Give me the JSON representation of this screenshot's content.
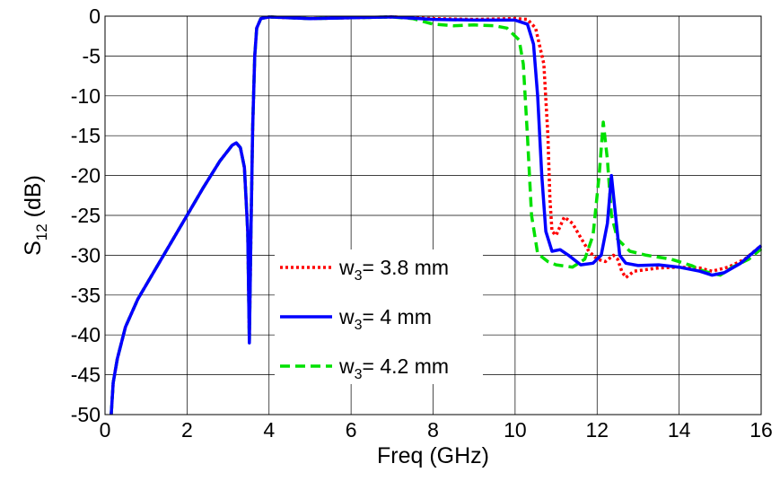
{
  "chart_data": {
    "type": "line",
    "xlabel": "Freq (GHz)",
    "ylabel": {
      "main": "S",
      "sub": "12",
      "rest": " (dB)"
    },
    "xlim": [
      0,
      16
    ],
    "ylim": [
      -50,
      0
    ],
    "xticks": [
      0,
      2,
      4,
      6,
      8,
      10,
      12,
      14,
      16
    ],
    "yticks": [
      0,
      -5,
      -10,
      -15,
      -20,
      -25,
      -30,
      -35,
      -40,
      -45,
      -50
    ],
    "grid": true,
    "legend_position": "lower-center",
    "series": [
      {
        "name": {
          "main": "w",
          "sub": "3",
          "rest": "= 3.8 mm"
        },
        "color": "#ff0000",
        "dash": "dotted",
        "points": [
          [
            0.15,
            -50
          ],
          [
            0.2,
            -46
          ],
          [
            0.3,
            -43
          ],
          [
            0.5,
            -39
          ],
          [
            0.8,
            -35.5
          ],
          [
            1.2,
            -32
          ],
          [
            1.6,
            -28.5
          ],
          [
            2.0,
            -25
          ],
          [
            2.4,
            -21.5
          ],
          [
            2.8,
            -18.2
          ],
          [
            3.1,
            -16.2
          ],
          [
            3.2,
            -15.9
          ],
          [
            3.3,
            -16.5
          ],
          [
            3.4,
            -19
          ],
          [
            3.48,
            -27
          ],
          [
            3.52,
            -40.5
          ],
          [
            3.56,
            -27
          ],
          [
            3.6,
            -14
          ],
          [
            3.65,
            -5
          ],
          [
            3.7,
            -1.5
          ],
          [
            3.8,
            -0.3
          ],
          [
            4.0,
            -0.1
          ],
          [
            5,
            -0.3
          ],
          [
            6,
            -0.2
          ],
          [
            7,
            -0.1
          ],
          [
            8,
            -0.3
          ],
          [
            9,
            -0.4
          ],
          [
            10,
            -0.3
          ],
          [
            10.3,
            -0.4
          ],
          [
            10.5,
            -1.5
          ],
          [
            10.7,
            -6
          ],
          [
            10.8,
            -15
          ],
          [
            10.85,
            -23
          ],
          [
            10.9,
            -27
          ],
          [
            11.0,
            -27.5
          ],
          [
            11.2,
            -25.2
          ],
          [
            11.4,
            -26
          ],
          [
            11.6,
            -27.8
          ],
          [
            11.8,
            -29.5
          ],
          [
            12.0,
            -30.5
          ],
          [
            12.2,
            -30.8
          ],
          [
            12.4,
            -30
          ],
          [
            12.5,
            -30.5
          ],
          [
            12.6,
            -32
          ],
          [
            12.7,
            -32.8
          ],
          [
            12.9,
            -32
          ],
          [
            13.5,
            -31.6
          ],
          [
            14,
            -31.5
          ],
          [
            14.5,
            -31.6
          ],
          [
            14.8,
            -32
          ],
          [
            15.2,
            -31.5
          ],
          [
            15.6,
            -30.5
          ],
          [
            16,
            -28.8
          ]
        ]
      },
      {
        "name": {
          "main": "w",
          "sub": "3",
          "rest": "= 4 mm"
        },
        "color": "#0000ff",
        "dash": "solid",
        "points": [
          [
            0.15,
            -50
          ],
          [
            0.2,
            -46
          ],
          [
            0.3,
            -43
          ],
          [
            0.5,
            -39
          ],
          [
            0.8,
            -35.5
          ],
          [
            1.2,
            -32
          ],
          [
            1.6,
            -28.5
          ],
          [
            2.0,
            -25
          ],
          [
            2.4,
            -21.5
          ],
          [
            2.8,
            -18.2
          ],
          [
            3.1,
            -16.2
          ],
          [
            3.2,
            -15.9
          ],
          [
            3.3,
            -16.5
          ],
          [
            3.4,
            -19
          ],
          [
            3.48,
            -27
          ],
          [
            3.52,
            -41
          ],
          [
            3.56,
            -27
          ],
          [
            3.6,
            -14
          ],
          [
            3.65,
            -5
          ],
          [
            3.7,
            -1.5
          ],
          [
            3.8,
            -0.3
          ],
          [
            4.0,
            -0.1
          ],
          [
            5,
            -0.3
          ],
          [
            6,
            -0.2
          ],
          [
            7,
            -0.1
          ],
          [
            8,
            -0.4
          ],
          [
            9,
            -0.5
          ],
          [
            10,
            -0.5
          ],
          [
            10.3,
            -1.0
          ],
          [
            10.45,
            -3.5
          ],
          [
            10.55,
            -10
          ],
          [
            10.65,
            -20
          ],
          [
            10.75,
            -27
          ],
          [
            10.9,
            -29.5
          ],
          [
            11.1,
            -29.3
          ],
          [
            11.3,
            -30
          ],
          [
            11.6,
            -31.2
          ],
          [
            11.9,
            -31
          ],
          [
            12.1,
            -30
          ],
          [
            12.25,
            -26
          ],
          [
            12.35,
            -20
          ],
          [
            12.45,
            -25
          ],
          [
            12.55,
            -30
          ],
          [
            12.7,
            -31
          ],
          [
            13,
            -31.3
          ],
          [
            13.5,
            -31.2
          ],
          [
            14,
            -31.5
          ],
          [
            14.5,
            -32
          ],
          [
            14.8,
            -32.5
          ],
          [
            15.1,
            -32.2
          ],
          [
            15.5,
            -31
          ],
          [
            16,
            -28.8
          ]
        ]
      },
      {
        "name": {
          "main": "w",
          "sub": "3",
          "rest": "= 4.2 mm"
        },
        "color": "#00e000",
        "dash": "dashed",
        "points": [
          [
            0.15,
            -50
          ],
          [
            0.2,
            -46
          ],
          [
            0.3,
            -43
          ],
          [
            0.5,
            -39
          ],
          [
            0.8,
            -35.5
          ],
          [
            1.2,
            -32
          ],
          [
            1.6,
            -28.5
          ],
          [
            2.0,
            -25
          ],
          [
            2.4,
            -21.5
          ],
          [
            2.8,
            -18.2
          ],
          [
            3.1,
            -16.2
          ],
          [
            3.2,
            -15.9
          ],
          [
            3.3,
            -16.5
          ],
          [
            3.4,
            -19
          ],
          [
            3.48,
            -27
          ],
          [
            3.52,
            -40.8
          ],
          [
            3.56,
            -27
          ],
          [
            3.6,
            -14
          ],
          [
            3.65,
            -5
          ],
          [
            3.7,
            -1.5
          ],
          [
            3.8,
            -0.3
          ],
          [
            4.0,
            -0.1
          ],
          [
            5,
            -0.3
          ],
          [
            6,
            -0.2
          ],
          [
            7,
            -0.1
          ],
          [
            7.5,
            -0.3
          ],
          [
            8,
            -1.0
          ],
          [
            8.5,
            -1.2
          ],
          [
            9,
            -1.1
          ],
          [
            9.5,
            -1.2
          ],
          [
            9.8,
            -1.5
          ],
          [
            10,
            -2.5
          ],
          [
            10.1,
            -3
          ],
          [
            10.2,
            -6
          ],
          [
            10.3,
            -15
          ],
          [
            10.4,
            -25
          ],
          [
            10.55,
            -29.8
          ],
          [
            10.8,
            -30.8
          ],
          [
            11.0,
            -31.2
          ],
          [
            11.4,
            -31.5
          ],
          [
            11.7,
            -30.5
          ],
          [
            11.9,
            -27.5
          ],
          [
            12.05,
            -20
          ],
          [
            12.15,
            -13.3
          ],
          [
            12.25,
            -18
          ],
          [
            12.35,
            -25
          ],
          [
            12.5,
            -28
          ],
          [
            12.8,
            -29.5
          ],
          [
            13.2,
            -30
          ],
          [
            13.8,
            -30.5
          ],
          [
            14.3,
            -31.3
          ],
          [
            14.6,
            -32
          ],
          [
            15,
            -32.5
          ],
          [
            15.3,
            -31.5
          ],
          [
            15.7,
            -30.5
          ],
          [
            16,
            -29.2
          ]
        ]
      }
    ]
  }
}
